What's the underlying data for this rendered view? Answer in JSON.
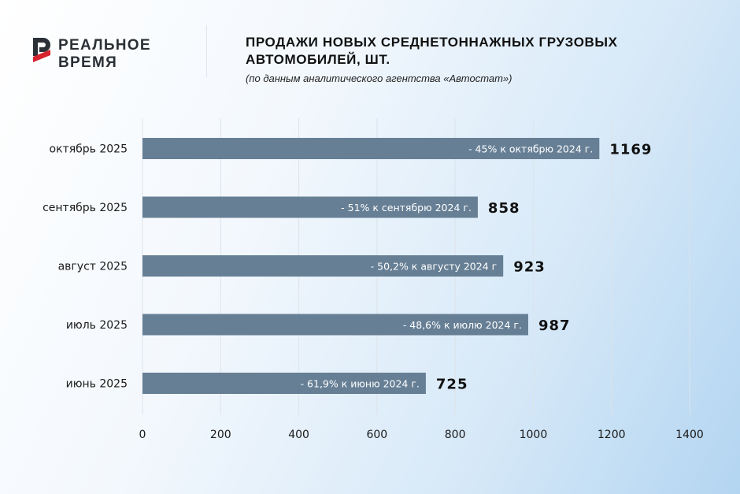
{
  "logo": {
    "line1": "РЕАЛЬНОЕ",
    "line2": "ВРЕМЯ"
  },
  "header": {
    "title_line1": "ПРОДАЖИ НОВЫХ СРЕДНЕТОННАЖНЫХ ГРУЗОВЫХ",
    "title_line2": "АВТОМОБИЛЕЙ, ШТ.",
    "subtitle": "(по данным аналитического агентства «Автостат»)"
  },
  "colors": {
    "bar": "#667f95",
    "bar_label": "#ffffff",
    "value": "#111111",
    "grid": "#dde3e9",
    "axis_text": "#1a1a1a"
  },
  "chart_data": {
    "type": "bar",
    "orientation": "horizontal",
    "categories": [
      "октябрь 2025",
      "сентябрь 2025",
      "август 2025",
      "июль 2025",
      "июнь 2025"
    ],
    "values": [
      1169,
      858,
      923,
      987,
      725
    ],
    "bar_labels": [
      "- 45% к октябрю 2024 г.",
      "- 51% к сентябрю 2024 г.",
      "- 50,2% к августу 2024 г",
      "- 48,6% к июлю 2024 г.",
      "- 61,9% к июню 2024 г."
    ],
    "value_labels": [
      "1169",
      "858",
      "923",
      "987",
      "725"
    ],
    "xlim": [
      0,
      1400
    ],
    "xticks": [
      0,
      200,
      400,
      600,
      800,
      1000,
      1200,
      1400
    ],
    "grid": "vertical",
    "legend": "none"
  }
}
